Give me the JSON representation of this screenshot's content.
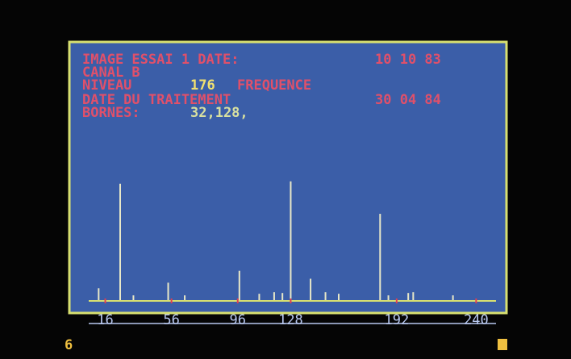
{
  "chart_data": {
    "type": "bar",
    "annotations": [
      {
        "text": "IMAGE ESSAI 1 DATE:",
        "color": "#e0506a"
      },
      {
        "text": "10 10 83",
        "color": "#e0506a"
      },
      {
        "text": "CANAL  B",
        "color": "#e0506a"
      },
      {
        "text": "NIVEAU",
        "color": "#e0506a"
      },
      {
        "text": "176",
        "color": "#f0e070"
      },
      {
        "text": "FREQUENCE",
        "color": "#e0506a"
      },
      {
        "text": "DATE DU TRAITEMENT",
        "color": "#e0506a"
      },
      {
        "text": "30 04 84",
        "color": "#e0506a"
      },
      {
        "text": "BORNES:",
        "color": "#e0506a"
      },
      {
        "text": "32,128,",
        "color": "#d8e0a0"
      },
      {
        "text": "6",
        "color": "#f0c040"
      }
    ],
    "x": [
      12,
      25,
      33,
      54,
      64,
      97,
      109,
      118,
      123,
      128,
      140,
      149,
      157,
      182,
      187,
      199,
      202,
      226
    ],
    "values": [
      15,
      147,
      6,
      22,
      6,
      37,
      8,
      10,
      9,
      150,
      27,
      10,
      8,
      109,
      6,
      9,
      10,
      6
    ],
    "color": "#e8e8c8",
    "xlim": [
      6,
      252
    ],
    "ylim": [
      0,
      160
    ],
    "xticks": [
      16,
      56,
      96,
      128,
      192,
      240
    ]
  }
}
